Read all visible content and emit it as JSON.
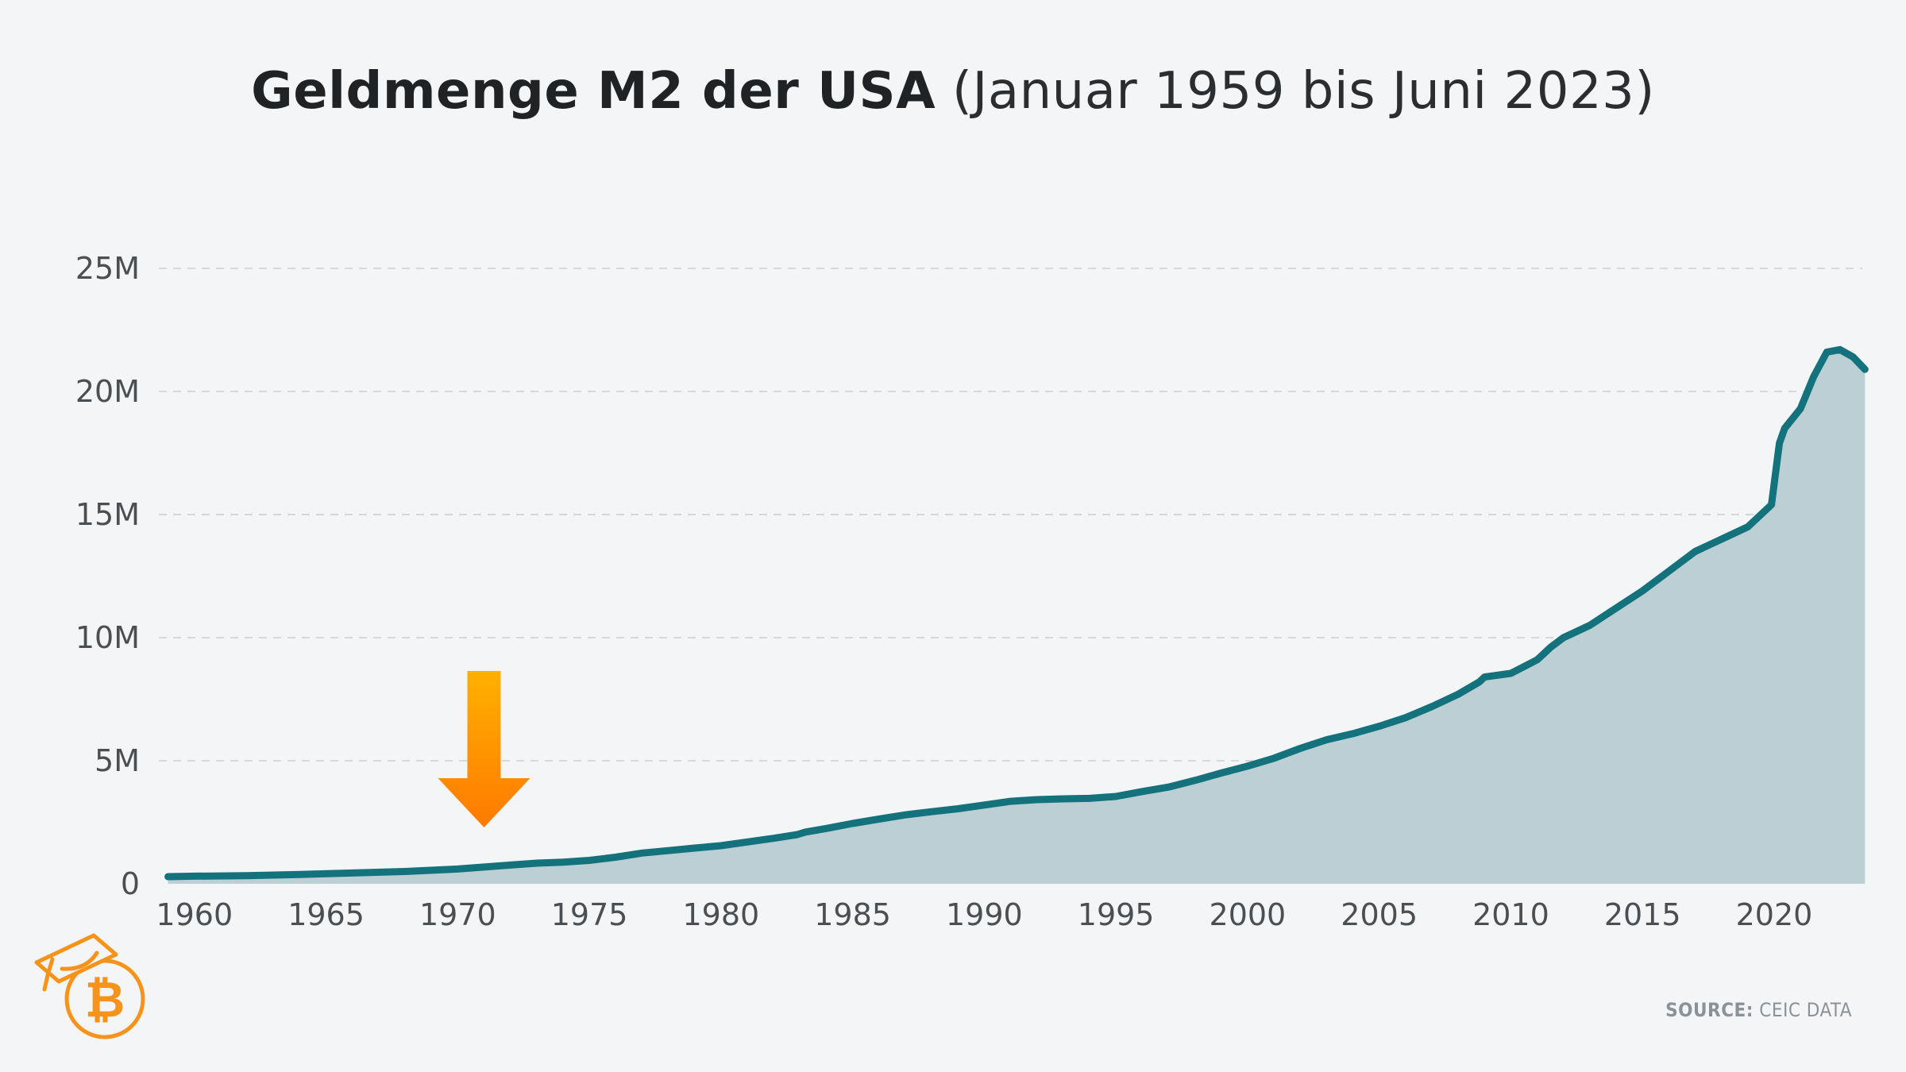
{
  "title": {
    "bold": "Geldmenge M2 der USA",
    "light": "(Januar 1959 bis Juni 2023)"
  },
  "source": {
    "label": "SOURCE:",
    "value": "CEIC DATA"
  },
  "colors": {
    "line": "#14727c",
    "area": "#bccfd5",
    "grid": "#c9ced2",
    "arrow_top": "#ffb000",
    "arrow_bottom": "#ff7a00",
    "logo": "#f7931a"
  },
  "annotation": {
    "type": "arrow-down",
    "x": 1971,
    "meaning": "Marks the year 1971"
  },
  "chart_data": {
    "type": "area",
    "title": "Geldmenge M2 der USA (Januar 1959 bis Juni 2023)",
    "xlabel": "",
    "ylabel": "",
    "xlim": [
      1958.8,
      2023.5
    ],
    "ylim": [
      0,
      25
    ],
    "grid": true,
    "x_ticks": [
      1960,
      1965,
      1970,
      1975,
      1980,
      1985,
      1990,
      1995,
      2000,
      2005,
      2010,
      2015,
      2020
    ],
    "y_ticks": [
      0,
      5,
      10,
      15,
      20,
      25
    ],
    "y_tick_labels": [
      "0",
      "5M",
      "10M",
      "15M",
      "20M",
      "25M"
    ],
    "series": [
      {
        "name": "M2",
        "x": [
          1959.0,
          1960,
          1962,
          1964,
          1966,
          1968,
          1970,
          1971,
          1972,
          1973,
          1974,
          1975,
          1976,
          1977,
          1978,
          1979,
          1980,
          1981,
          1982,
          1982.9,
          1983.2,
          1984,
          1985,
          1986,
          1987,
          1988,
          1989,
          1990,
          1991,
          1992,
          1993,
          1994,
          1995,
          1996,
          1997,
          1998,
          1999,
          2000,
          2001,
          2002,
          2003,
          2004,
          2005,
          2006,
          2007,
          2008,
          2008.8,
          2009,
          2010,
          2011,
          2011.5,
          2012,
          2013,
          2014,
          2015,
          2016,
          2017,
          2018,
          2019,
          2019.9,
          2020.2,
          2020.4,
          2021,
          2021.5,
          2022,
          2022.5,
          2023.0,
          2023.45
        ],
        "values": [
          0.29,
          0.31,
          0.33,
          0.38,
          0.44,
          0.5,
          0.6,
          0.68,
          0.76,
          0.84,
          0.88,
          0.95,
          1.08,
          1.25,
          1.35,
          1.45,
          1.55,
          1.7,
          1.85,
          2.0,
          2.1,
          2.25,
          2.45,
          2.63,
          2.8,
          2.93,
          3.05,
          3.2,
          3.35,
          3.42,
          3.45,
          3.47,
          3.55,
          3.75,
          3.93,
          4.2,
          4.5,
          4.78,
          5.1,
          5.5,
          5.85,
          6.1,
          6.4,
          6.75,
          7.2,
          7.7,
          8.2,
          8.4,
          8.55,
          9.1,
          9.6,
          10.0,
          10.5,
          11.2,
          11.9,
          12.7,
          13.5,
          14.0,
          14.5,
          15.4,
          17.9,
          18.5,
          19.3,
          20.6,
          21.6,
          21.7,
          21.4,
          20.9
        ]
      }
    ]
  }
}
